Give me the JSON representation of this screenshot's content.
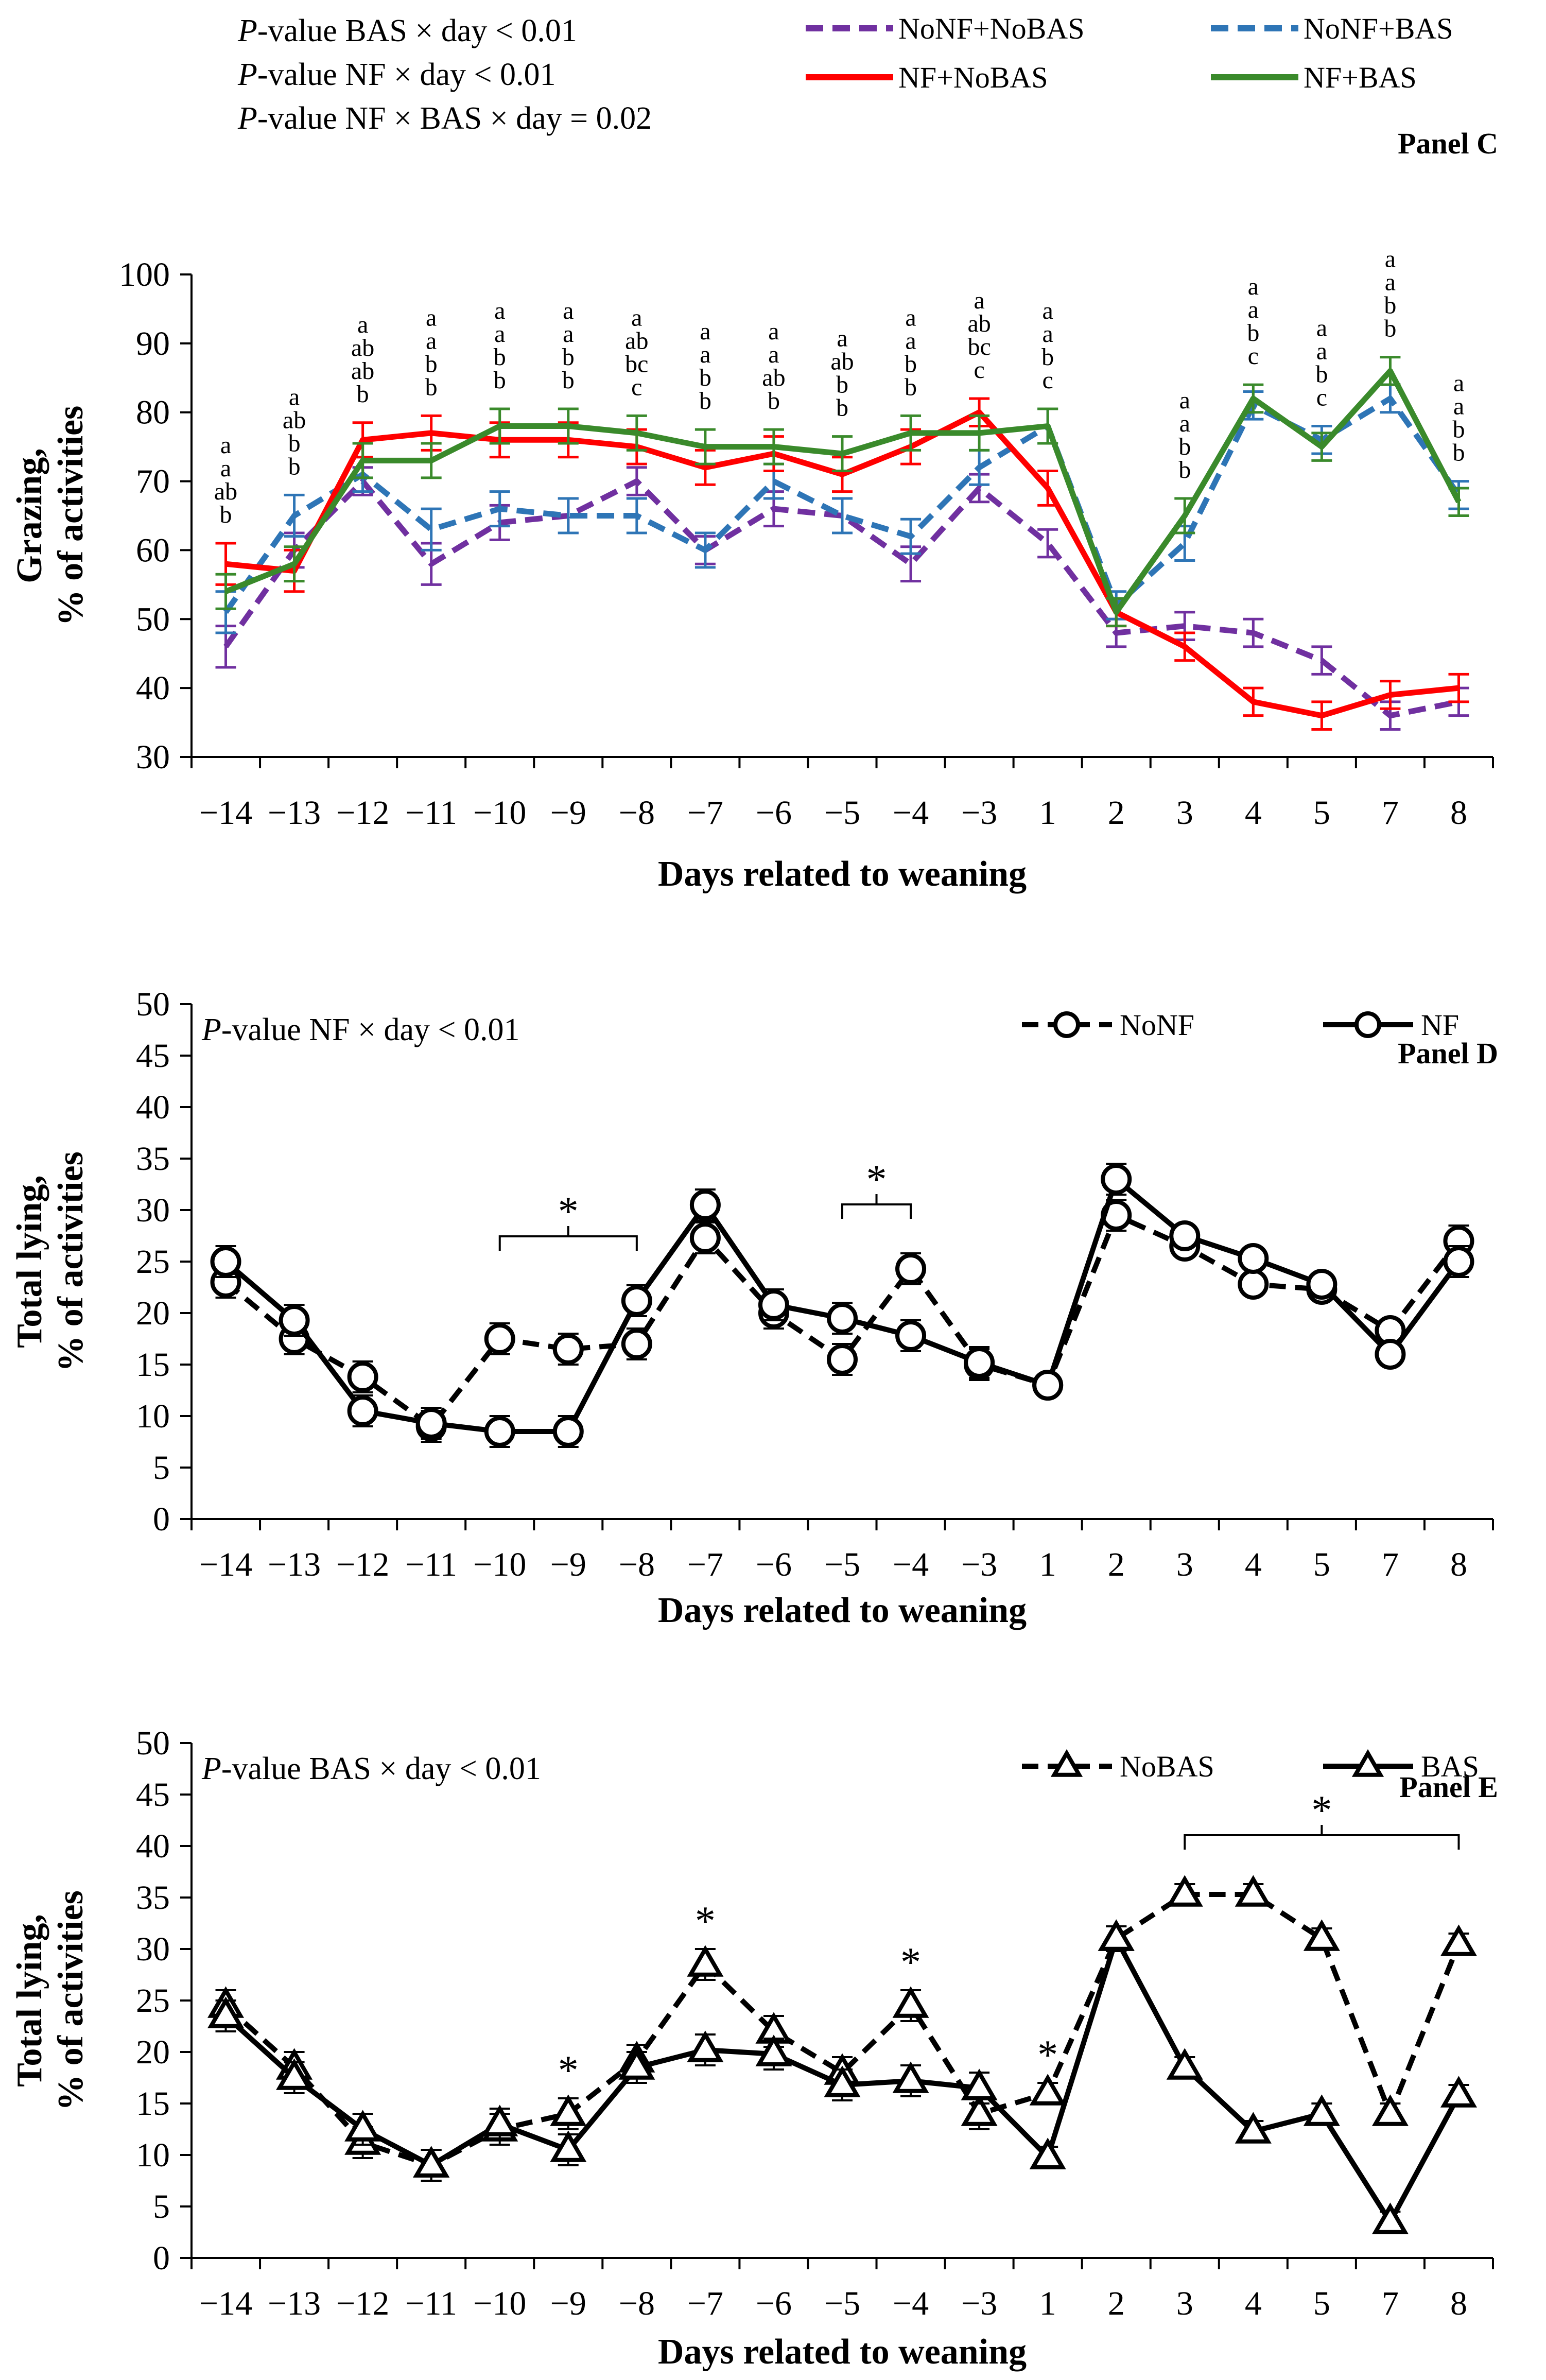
{
  "chart_data": [
    {
      "type": "line",
      "panel": "Panel C",
      "title": "Panel C",
      "xlabel": "Days related to weaning",
      "ylabel_line1": "Grazing,",
      "ylabel_line2": "% of activities",
      "ylim": [
        30,
        100
      ],
      "yticks": [
        30,
        40,
        50,
        60,
        70,
        80,
        90,
        100
      ],
      "categories": [
        "−14",
        "−13",
        "−12",
        "−11",
        "−10",
        "−9",
        "−8",
        "−7",
        "−6",
        "−5",
        "−4",
        "−3",
        "1",
        "2",
        "3",
        "4",
        "5",
        "7",
        "8"
      ],
      "legend_position": "top",
      "pvalues": [
        {
          "prefix": "P",
          "text": "-value BAS × day < 0.01"
        },
        {
          "prefix": "P",
          "text": "-value NF × day < 0.01"
        },
        {
          "prefix": "P",
          "text": "-value NF × BAS × day = 0.02"
        }
      ],
      "series": [
        {
          "name": "NoNF+NoBAS",
          "color": "#7030a0",
          "dash": true,
          "values": [
            46,
            60,
            70,
            58,
            64,
            65,
            70,
            60,
            66,
            65,
            58,
            69,
            61,
            48,
            49,
            48,
            44,
            36,
            38
          ],
          "errors": [
            3,
            2.5,
            2,
            3,
            2.5,
            2.5,
            2,
            2,
            2.5,
            2.5,
            2.5,
            2,
            2,
            2,
            2,
            2,
            2,
            2,
            2
          ]
        },
        {
          "name": "NoNF+BAS",
          "color": "#2e75b6",
          "dash": true,
          "values": [
            51,
            65,
            71,
            63,
            66,
            65,
            65,
            60,
            70,
            65,
            62,
            72,
            78,
            52,
            61,
            81,
            76,
            82,
            68
          ],
          "errors": [
            3,
            3,
            2.5,
            3,
            2.5,
            2.5,
            2.5,
            2.5,
            2.5,
            2.5,
            2.5,
            2.5,
            2.5,
            2,
            2.5,
            2,
            2,
            2,
            2
          ]
        },
        {
          "name": "NF+NoBAS",
          "color": "#ff0000",
          "dash": false,
          "values": [
            58,
            57,
            76,
            77,
            76,
            76,
            75,
            72,
            74,
            71,
            75,
            80,
            69,
            51,
            46,
            38,
            36,
            39,
            40
          ],
          "errors": [
            3,
            3,
            2.5,
            2.5,
            2.5,
            2.5,
            2.5,
            2.5,
            2.5,
            2.5,
            2.5,
            2,
            2.5,
            2,
            2,
            2,
            2,
            2,
            2
          ]
        },
        {
          "name": "NF+BAS",
          "color": "#3a8a2b",
          "dash": false,
          "values": [
            54,
            58,
            73,
            73,
            78,
            78,
            77,
            75,
            75,
            74,
            77,
            77,
            78,
            51,
            65,
            82,
            75,
            86,
            67
          ],
          "errors": [
            2.5,
            2.5,
            2.5,
            2.5,
            2.5,
            2.5,
            2.5,
            2.5,
            2.5,
            2.5,
            2.5,
            2.5,
            2.5,
            2,
            2.5,
            2,
            2,
            2,
            2
          ]
        }
      ],
      "letter_annotations": [
        [
          "a",
          "a",
          "ab",
          "b"
        ],
        [
          "a",
          "ab",
          "b",
          "b"
        ],
        [
          "a",
          "ab",
          "ab",
          "b"
        ],
        [
          "a",
          "a",
          "b",
          "b"
        ],
        [
          "a",
          "a",
          "b",
          "b"
        ],
        [
          "a",
          "a",
          "b",
          "b"
        ],
        [
          "a",
          "ab",
          "bc",
          "c"
        ],
        [
          "a",
          "a",
          "b",
          "b"
        ],
        [
          "a",
          "a",
          "ab",
          "b"
        ],
        [
          "a",
          "ab",
          "b",
          "b"
        ],
        [
          "a",
          "a",
          "b",
          "b"
        ],
        [
          "a",
          "ab",
          "bc",
          "c"
        ],
        [
          "a",
          "a",
          "b",
          "c"
        ],
        [],
        [
          "a",
          "a",
          "b",
          "b"
        ],
        [
          "a",
          "a",
          "b",
          "c"
        ],
        [
          "a",
          "a",
          "b",
          "c"
        ],
        [
          "a",
          "a",
          "b",
          "b"
        ],
        [
          "a",
          "a",
          "b",
          "b"
        ]
      ]
    },
    {
      "type": "line",
      "panel": "Panel D",
      "title": "Panel D",
      "xlabel": "Days related to weaning",
      "ylabel_line1": "Total lying,",
      "ylabel_line2": "% of activities",
      "ylim": [
        0,
        50
      ],
      "yticks": [
        0,
        5,
        10,
        15,
        20,
        25,
        30,
        35,
        40,
        45,
        50
      ],
      "categories": [
        "−14",
        "−13",
        "−12",
        "−11",
        "−10",
        "−9",
        "−8",
        "−7",
        "−6",
        "−5",
        "−4",
        "−3",
        "1",
        "2",
        "3",
        "4",
        "5",
        "7",
        "8"
      ],
      "legend_position": "top-right",
      "pvalues": [
        {
          "prefix": "P",
          "text": "-value NF × day < 0.01"
        }
      ],
      "series": [
        {
          "name": "NoNF",
          "marker": "circle",
          "dash": true,
          "values": [
            23,
            17.5,
            13.8,
            9,
            17.5,
            16.5,
            17,
            27.3,
            20,
            15.5,
            24.3,
            15,
            13,
            29.5,
            26.5,
            22.8,
            22.3,
            18.3,
            27
          ],
          "errors": [
            1.5,
            1.5,
            1.5,
            1.5,
            1.5,
            1.5,
            1.5,
            1.5,
            1.5,
            1.5,
            1.5,
            1.5,
            1,
            1.5,
            1,
            1,
            1,
            1,
            1.5
          ]
        },
        {
          "name": "NF",
          "marker": "circle",
          "dash": false,
          "values": [
            25,
            19.3,
            10.5,
            9.3,
            8.5,
            8.5,
            21.2,
            30.5,
            20.8,
            19.5,
            17.8,
            15.2,
            13,
            33,
            27.5,
            25.3,
            22.8,
            16,
            25
          ],
          "errors": [
            1.5,
            1.5,
            1.5,
            1.5,
            1.5,
            1.5,
            1.5,
            1.5,
            1.5,
            1.5,
            1.5,
            1.5,
            1,
            1.5,
            1,
            1,
            1,
            1,
            1.5
          ]
        }
      ],
      "significance": [
        {
          "label": "*",
          "from": "−10",
          "to": "−8"
        },
        {
          "label": "*",
          "from": "−5",
          "to": "−4"
        }
      ]
    },
    {
      "type": "line",
      "panel": "Panel E",
      "title": "Panel E",
      "xlabel": "Days related to weaning",
      "ylabel_line1": "Total lying,",
      "ylabel_line2": "% of activities",
      "ylim": [
        0,
        50
      ],
      "yticks": [
        0,
        5,
        10,
        15,
        20,
        25,
        30,
        35,
        40,
        45,
        50
      ],
      "categories": [
        "−14",
        "−13",
        "−12",
        "−11",
        "−10",
        "−9",
        "−8",
        "−7",
        "−6",
        "−5",
        "−4",
        "−3",
        "1",
        "2",
        "3",
        "4",
        "5",
        "7",
        "8"
      ],
      "legend_position": "top-right",
      "pvalues": [
        {
          "prefix": "P",
          "text": "-value BAS × day < 0.01"
        }
      ],
      "series": [
        {
          "name": "NoBAS",
          "marker": "triangle",
          "dash": true,
          "values": [
            24.5,
            18.5,
            11.2,
            9,
            12.5,
            14,
            19.2,
            28.5,
            22,
            18,
            24.5,
            14,
            16,
            31,
            35.3,
            35.3,
            31,
            14,
            30.5
          ],
          "errors": [
            1.5,
            1.5,
            1.5,
            1.5,
            1.5,
            1.5,
            1.5,
            1.5,
            1.5,
            1.5,
            1.5,
            1.5,
            1,
            1.2,
            1,
            1,
            1,
            1,
            1
          ]
        },
        {
          "name": "BAS",
          "marker": "triangle",
          "dash": false,
          "values": [
            23.5,
            17.5,
            12.5,
            9,
            13,
            10.5,
            18.5,
            20.2,
            19.8,
            16.8,
            17.2,
            16.5,
            9.8,
            31,
            18.5,
            12.3,
            14,
            3.5,
            15.8
          ],
          "errors": [
            1.5,
            1.5,
            1.5,
            1.5,
            1.5,
            1.5,
            1.5,
            1.5,
            1.5,
            1.5,
            1.5,
            1.5,
            1,
            1.2,
            1,
            1,
            1,
            1,
            1
          ]
        }
      ],
      "significance": [
        {
          "label": "*",
          "at": "−9"
        },
        {
          "label": "*",
          "at": "−7"
        },
        {
          "label": "*",
          "at": "−4"
        },
        {
          "label": "*",
          "at": "1"
        },
        {
          "label": "*",
          "from": "3",
          "to": "8"
        }
      ]
    }
  ]
}
